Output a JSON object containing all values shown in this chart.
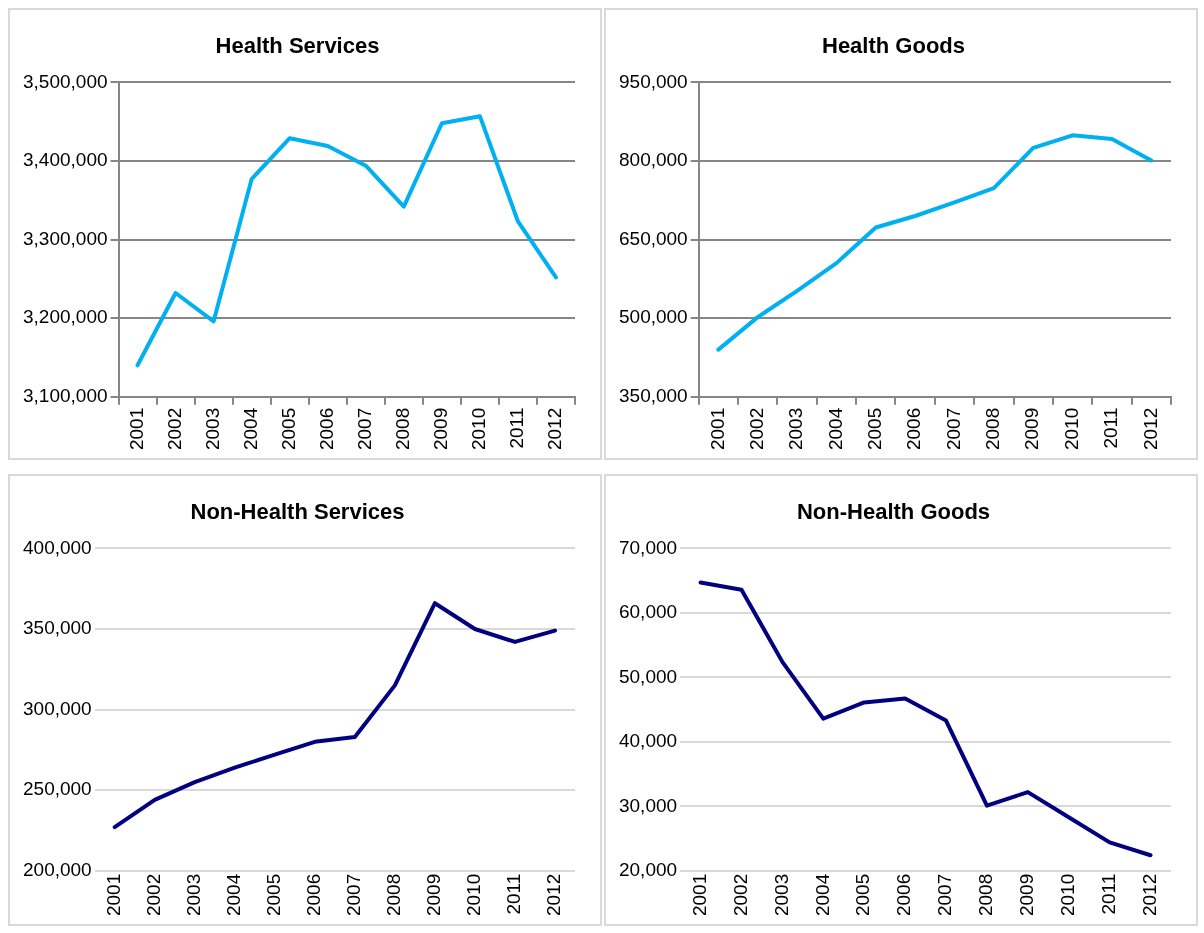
{
  "chart_data": [
    {
      "type": "line",
      "title": "Health Services",
      "categories": [
        "2001",
        "2002",
        "2003",
        "2004",
        "2005",
        "2006",
        "2007",
        "2008",
        "2009",
        "2010",
        "2011",
        "2012"
      ],
      "values": [
        3140000,
        3232000,
        3196000,
        3377000,
        3429000,
        3419000,
        3394000,
        3342000,
        3448000,
        3457000,
        3323000,
        3252000
      ],
      "color": "#00b0f0",
      "ylim": [
        3100000,
        3500000
      ],
      "yticks": [
        {
          "value": 3100000,
          "label": "3,100,000"
        },
        {
          "value": 3200000,
          "label": "3,200,000"
        },
        {
          "value": 3300000,
          "label": "3,300,000"
        },
        {
          "value": 3400000,
          "label": "3,400,000"
        },
        {
          "value": 3500000,
          "label": "3,500,000"
        }
      ],
      "grid": "y"
    },
    {
      "type": "line",
      "title": "Health Goods",
      "categories": [
        "2001",
        "2002",
        "2003",
        "2004",
        "2005",
        "2006",
        "2007",
        "2008",
        "2009",
        "2010",
        "2011",
        "2012"
      ],
      "values": [
        440000,
        502000,
        552000,
        605000,
        673000,
        695000,
        721000,
        748000,
        825000,
        849000,
        842000,
        801000
      ],
      "color": "#00b0f0",
      "ylim": [
        350000,
        950000
      ],
      "yticks": [
        {
          "value": 350000,
          "label": "350,000"
        },
        {
          "value": 500000,
          "label": "500,000"
        },
        {
          "value": 650000,
          "label": "650,000"
        },
        {
          "value": 800000,
          "label": "800,000"
        },
        {
          "value": 950000,
          "label": "950,000"
        }
      ],
      "grid": "y"
    },
    {
      "type": "line",
      "title": "Non-Health Services",
      "categories": [
        "2001",
        "2002",
        "2003",
        "2004",
        "2005",
        "2006",
        "2007",
        "2008",
        "2009",
        "2010",
        "2011",
        "2012"
      ],
      "values": [
        227000,
        244000,
        255000,
        264000,
        272000,
        280000,
        283000,
        315000,
        366000,
        350000,
        342000,
        349000
      ],
      "color": "#000080",
      "ylim": [
        200000,
        400000
      ],
      "yticks": [
        {
          "value": 200000,
          "label": "200,000"
        },
        {
          "value": 250000,
          "label": "250,000"
        },
        {
          "value": 300000,
          "label": "300,000"
        },
        {
          "value": 350000,
          "label": "350,000"
        },
        {
          "value": 400000,
          "label": "400,000"
        }
      ],
      "grid": "y"
    },
    {
      "type": "line",
      "title": "Non-Health Goods",
      "categories": [
        "2001",
        "2002",
        "2003",
        "2004",
        "2005",
        "2006",
        "2007",
        "2008",
        "2009",
        "2010",
        "2011",
        "2012"
      ],
      "values": [
        64700,
        63600,
        52400,
        43600,
        46100,
        46700,
        43300,
        30100,
        32200,
        28300,
        24400,
        22400
      ],
      "color": "#000080",
      "ylim": [
        20000,
        70000
      ],
      "yticks": [
        {
          "value": 20000,
          "label": "20,000"
        },
        {
          "value": 30000,
          "label": "30,000"
        },
        {
          "value": 40000,
          "label": "40,000"
        },
        {
          "value": 50000,
          "label": "50,000"
        },
        {
          "value": 60000,
          "label": "60,000"
        },
        {
          "value": 70000,
          "label": "70,000"
        }
      ],
      "grid": "y"
    }
  ]
}
